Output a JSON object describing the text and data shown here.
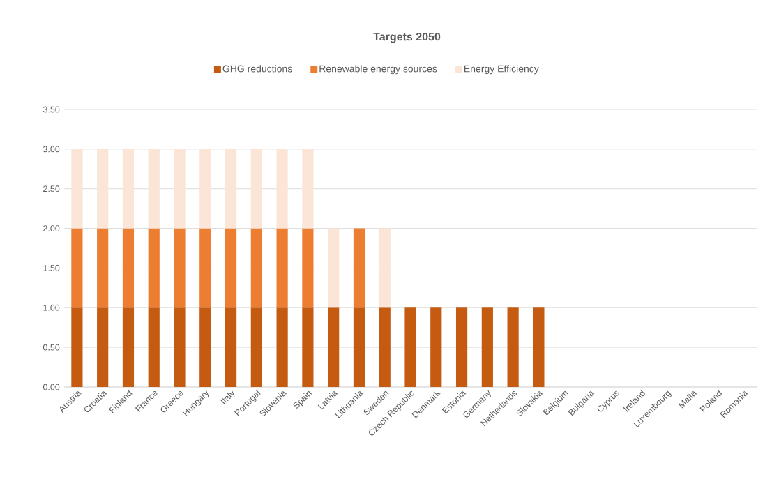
{
  "chart_data": {
    "type": "bar",
    "title": "Targets 2050",
    "stacked": true,
    "legend": "top",
    "grid": "y",
    "categories": [
      "Austria",
      "Croatia",
      "Finland",
      "France",
      "Greece",
      "Hungary",
      "Italy",
      "Portugal",
      "Slovenia",
      "Spain",
      "Latvia",
      "Lithuania",
      "Sweden",
      "Czech Republic",
      "Denmark",
      "Estonia",
      "Germany",
      "Netherlands",
      "Slovakia",
      "Belgium",
      "Bulgaria",
      "Cyprus",
      "Ireland",
      "Luxembourg",
      "Malta",
      "Poland",
      "Romania"
    ],
    "series": [
      {
        "name": "GHG reductions",
        "color": "#c55a11",
        "values": [
          1,
          1,
          1,
          1,
          1,
          1,
          1,
          1,
          1,
          1,
          1,
          1,
          1,
          1,
          1,
          1,
          1,
          1,
          1,
          0,
          0,
          0,
          0,
          0,
          0,
          0,
          0
        ]
      },
      {
        "name": "Renewable energy sources",
        "color": "#ed7d31",
        "values": [
          1,
          1,
          1,
          1,
          1,
          1,
          1,
          1,
          1,
          1,
          0,
          1,
          0,
          0,
          0,
          0,
          0,
          0,
          0,
          0,
          0,
          0,
          0,
          0,
          0,
          0,
          0
        ]
      },
      {
        "name": "Energy Efficiency",
        "color": "#fbe5d6",
        "values": [
          1,
          1,
          1,
          1,
          1,
          1,
          1,
          1,
          1,
          1,
          1,
          0,
          1,
          0,
          0,
          0,
          0,
          0,
          0,
          0,
          0,
          0,
          0,
          0,
          0,
          0,
          0
        ]
      }
    ],
    "ylim": [
      0,
      3.5
    ],
    "yticks": [
      {
        "value": 0,
        "label": "0.00"
      },
      {
        "value": 0.5,
        "label": "0.50"
      },
      {
        "value": 1,
        "label": "1.00"
      },
      {
        "value": 1.5,
        "label": "1.50"
      },
      {
        "value": 2,
        "label": "2.00"
      },
      {
        "value": 2.5,
        "label": "2.50"
      },
      {
        "value": 3,
        "label": "3.00"
      },
      {
        "value": 3.5,
        "label": "3.50"
      }
    ]
  }
}
